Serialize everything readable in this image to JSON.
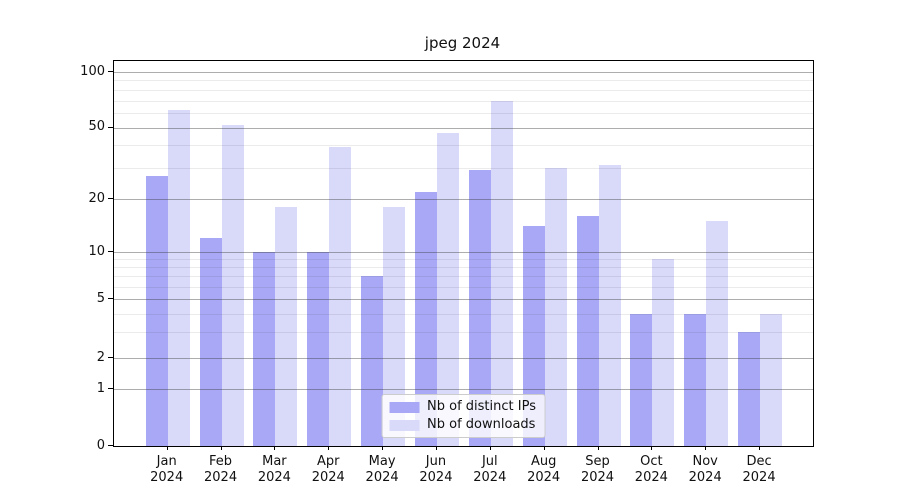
{
  "chart_data": {
    "type": "bar",
    "title": "jpeg 2024",
    "categories": [
      "Jan",
      "Feb",
      "Mar",
      "Apr",
      "May",
      "Jun",
      "Jul",
      "Aug",
      "Sep",
      "Oct",
      "Nov",
      "Dec"
    ],
    "category_year": "2024",
    "series": [
      {
        "name": "Nb of distinct IPs",
        "color": "#a8a8f6",
        "values": [
          27,
          12,
          10,
          10,
          7,
          22,
          29,
          14,
          16,
          4,
          4,
          3
        ]
      },
      {
        "name": "Nb of downloads",
        "color": "#d9d9fa",
        "values": [
          62,
          52,
          18,
          39,
          18,
          47,
          70,
          30,
          31,
          9,
          15,
          4
        ]
      }
    ],
    "y_axis": {
      "scale": "symlog",
      "major_ticks": [
        0,
        1,
        2,
        5,
        10,
        20,
        50,
        100
      ],
      "minor_ticks": [
        3,
        4,
        6,
        7,
        8,
        9,
        30,
        40,
        60,
        70,
        80,
        90
      ],
      "ylim": [
        0,
        115
      ]
    },
    "grid": true,
    "legend_position": "lower center",
    "colors": {
      "background": "#ffffff",
      "axis": "#000000",
      "major_grid": "#b0b0b0",
      "minor_grid": "#e8e8e8"
    }
  }
}
